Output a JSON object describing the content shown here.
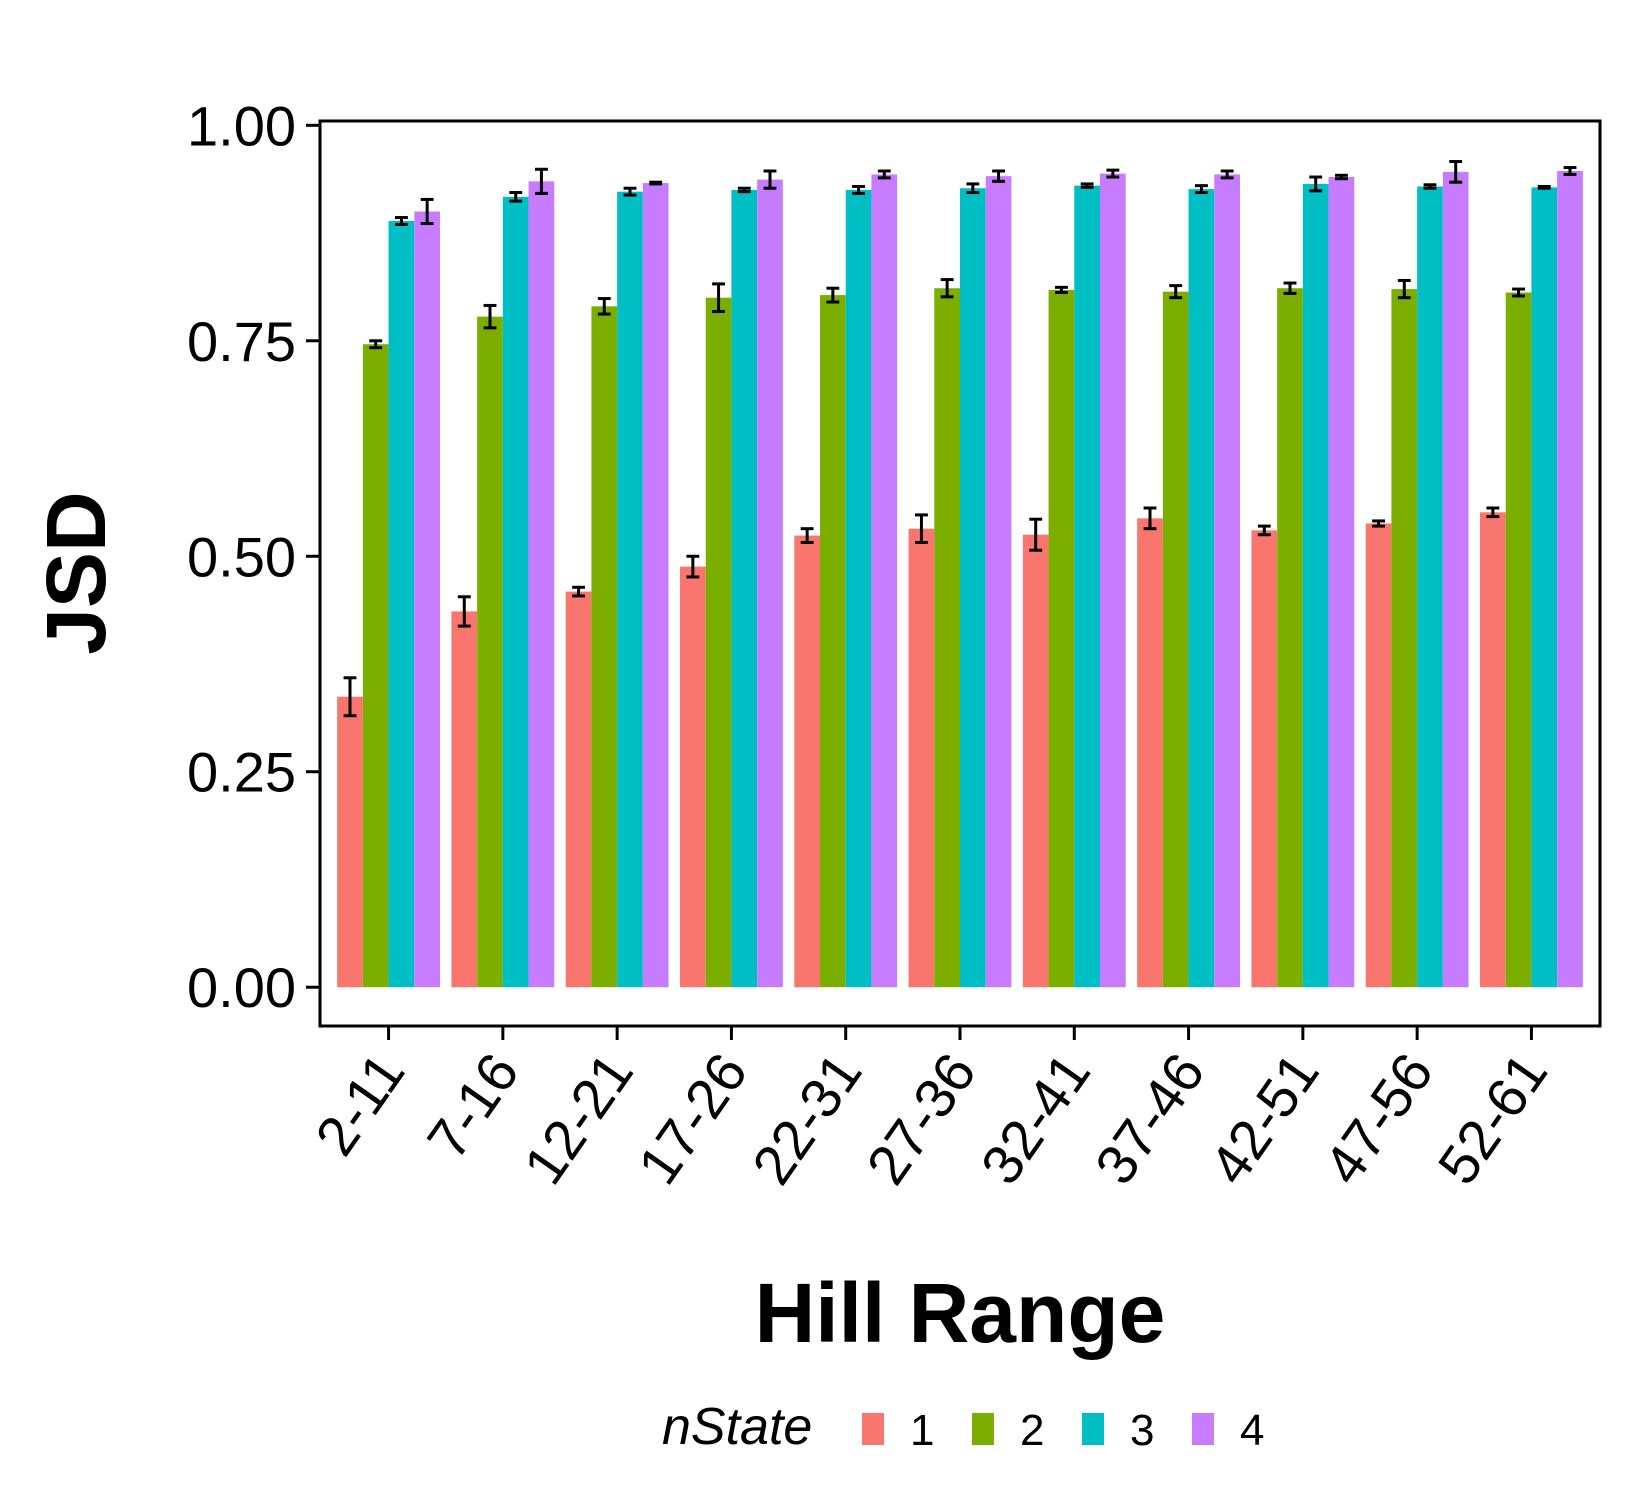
{
  "chart_data": {
    "type": "bar",
    "title": "",
    "xlabel": "Hill Range",
    "ylabel": "JSD",
    "ylim": [
      -0.045,
      1.005
    ],
    "yticks": [
      "0.00",
      "0.25",
      "0.50",
      "0.75",
      "1.00"
    ],
    "grid": false,
    "legend": {
      "title": "nState",
      "position": "bottom"
    },
    "categories": [
      "2-11",
      "7-16",
      "12-21",
      "17-26",
      "22-31",
      "27-36",
      "32-41",
      "37-46",
      "42-51",
      "47-56",
      "52-61"
    ],
    "series": [
      {
        "name": "1",
        "color": "#F8766D",
        "values": [
          0.337,
          0.436,
          0.459,
          0.488,
          0.524,
          0.532,
          0.525,
          0.544,
          0.53,
          0.538,
          0.551
        ],
        "errors": [
          0.022,
          0.017,
          0.005,
          0.012,
          0.008,
          0.016,
          0.018,
          0.012,
          0.005,
          0.003,
          0.005
        ]
      },
      {
        "name": "2",
        "color": "#7CAE00",
        "values": [
          0.746,
          0.778,
          0.79,
          0.8,
          0.803,
          0.811,
          0.809,
          0.807,
          0.811,
          0.81,
          0.806
        ],
        "errors": [
          0.004,
          0.013,
          0.009,
          0.016,
          0.008,
          0.01,
          0.003,
          0.007,
          0.006,
          0.01,
          0.004
        ]
      },
      {
        "name": "3",
        "color": "#00BFC4",
        "values": [
          0.889,
          0.917,
          0.923,
          0.925,
          0.925,
          0.927,
          0.93,
          0.926,
          0.932,
          0.929,
          0.928
        ],
        "errors": [
          0.004,
          0.005,
          0.004,
          0.002,
          0.004,
          0.005,
          0.002,
          0.004,
          0.008,
          0.002,
          0.001
        ]
      },
      {
        "name": "4",
        "color": "#C77CFF",
        "values": [
          0.9,
          0.935,
          0.933,
          0.937,
          0.943,
          0.941,
          0.944,
          0.943,
          0.94,
          0.946,
          0.947
        ],
        "errors": [
          0.014,
          0.014,
          0.001,
          0.01,
          0.004,
          0.006,
          0.004,
          0.004,
          0.002,
          0.012,
          0.004
        ]
      }
    ]
  }
}
